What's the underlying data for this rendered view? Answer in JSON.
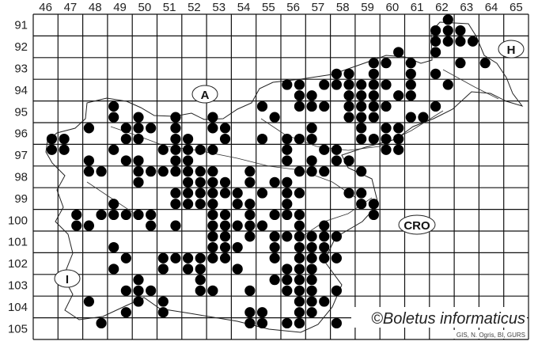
{
  "chart_data": {
    "type": "map",
    "grid": {
      "columns": [
        "46",
        "47",
        "48",
        "49",
        "50",
        "51",
        "52",
        "53",
        "54",
        "55",
        "56",
        "57",
        "58",
        "59",
        "60",
        "61",
        "62",
        "63",
        "64",
        "65"
      ],
      "rows": [
        "91",
        "92",
        "93",
        "94",
        "95",
        "96",
        "97",
        "98",
        "99",
        "100",
        "101",
        "102",
        "103",
        "104",
        "105"
      ]
    },
    "dot_color": "#000000",
    "dots": [
      [
        62,
        91,
        1,
        0
      ],
      [
        62,
        91,
        0,
        1
      ],
      [
        62,
        91,
        1,
        1
      ],
      [
        63,
        91,
        0,
        1
      ],
      [
        62,
        92,
        0,
        0
      ],
      [
        62,
        92,
        1,
        0
      ],
      [
        63,
        92,
        0,
        0
      ],
      [
        63,
        92,
        1,
        0
      ],
      [
        62,
        92,
        0,
        1
      ],
      [
        60,
        92,
        1,
        1
      ],
      [
        59,
        93,
        1,
        0
      ],
      [
        60,
        93,
        0,
        0
      ],
      [
        61,
        93,
        0,
        0
      ],
      [
        63,
        93,
        0,
        0
      ],
      [
        64,
        93,
        0,
        0
      ],
      [
        58,
        93,
        0,
        1
      ],
      [
        58,
        93,
        1,
        1
      ],
      [
        59,
        93,
        1,
        1
      ],
      [
        61,
        93,
        0,
        1
      ],
      [
        62,
        93,
        0,
        1
      ],
      [
        56,
        94,
        0,
        0
      ],
      [
        56,
        94,
        1,
        0
      ],
      [
        57,
        94,
        1,
        0
      ],
      [
        58,
        94,
        0,
        0
      ],
      [
        58,
        94,
        1,
        0
      ],
      [
        59,
        94,
        0,
        0
      ],
      [
        59,
        94,
        1,
        0
      ],
      [
        60,
        94,
        0,
        0
      ],
      [
        61,
        94,
        0,
        0
      ],
      [
        62,
        94,
        1,
        0
      ],
      [
        56,
        94,
        1,
        1
      ],
      [
        57,
        94,
        0,
        1
      ],
      [
        58,
        94,
        1,
        1
      ],
      [
        59,
        94,
        0,
        1
      ],
      [
        59,
        94,
        1,
        1
      ],
      [
        60,
        94,
        1,
        1
      ],
      [
        61,
        94,
        0,
        1
      ],
      [
        49,
        95,
        0,
        0
      ],
      [
        55,
        95,
        0,
        0
      ],
      [
        56,
        95,
        1,
        0
      ],
      [
        57,
        95,
        0,
        0
      ],
      [
        57,
        95,
        1,
        0
      ],
      [
        58,
        95,
        1,
        0
      ],
      [
        59,
        95,
        0,
        0
      ],
      [
        59,
        95,
        1,
        0
      ],
      [
        60,
        95,
        0,
        0
      ],
      [
        62,
        95,
        0,
        0
      ],
      [
        49,
        95,
        0,
        1
      ],
      [
        50,
        95,
        0,
        1
      ],
      [
        51,
        95,
        1,
        1
      ],
      [
        53,
        95,
        0,
        1
      ],
      [
        55,
        95,
        1,
        1
      ],
      [
        58,
        95,
        1,
        1
      ],
      [
        59,
        95,
        0,
        1
      ],
      [
        59,
        95,
        1,
        1
      ],
      [
        61,
        95,
        0,
        1
      ],
      [
        61,
        95,
        1,
        1
      ],
      [
        48,
        96,
        0,
        0
      ],
      [
        49,
        96,
        1,
        0
      ],
      [
        50,
        96,
        0,
        0
      ],
      [
        50,
        96,
        1,
        0
      ],
      [
        51,
        96,
        1,
        0
      ],
      [
        53,
        96,
        0,
        0
      ],
      [
        53,
        96,
        1,
        0
      ],
      [
        57,
        96,
        0,
        0
      ],
      [
        59,
        96,
        0,
        0
      ],
      [
        60,
        96,
        0,
        0
      ],
      [
        60,
        96,
        1,
        0
      ],
      [
        46,
        96,
        1,
        1
      ],
      [
        47,
        96,
        0,
        1
      ],
      [
        49,
        96,
        1,
        1
      ],
      [
        50,
        96,
        0,
        1
      ],
      [
        51,
        96,
        1,
        1
      ],
      [
        52,
        96,
        0,
        1
      ],
      [
        53,
        96,
        1,
        1
      ],
      [
        55,
        96,
        0,
        1
      ],
      [
        56,
        96,
        0,
        1
      ],
      [
        56,
        96,
        1,
        1
      ],
      [
        57,
        96,
        0,
        1
      ],
      [
        59,
        96,
        0,
        1
      ],
      [
        59,
        96,
        1,
        1
      ],
      [
        60,
        96,
        0,
        1
      ],
      [
        60,
        96,
        1,
        1
      ],
      [
        46,
        97,
        1,
        0
      ],
      [
        47,
        97,
        0,
        0
      ],
      [
        49,
        97,
        0,
        0
      ],
      [
        51,
        97,
        0,
        0
      ],
      [
        51,
        97,
        1,
        0
      ],
      [
        52,
        97,
        0,
        0
      ],
      [
        52,
        97,
        1,
        0
      ],
      [
        53,
        97,
        0,
        0
      ],
      [
        56,
        97,
        0,
        0
      ],
      [
        57,
        97,
        1,
        0
      ],
      [
        58,
        97,
        0,
        0
      ],
      [
        60,
        97,
        0,
        0
      ],
      [
        60,
        97,
        1,
        0
      ],
      [
        48,
        97,
        0,
        1
      ],
      [
        49,
        97,
        1,
        1
      ],
      [
        50,
        97,
        0,
        1
      ],
      [
        51,
        97,
        1,
        1
      ],
      [
        52,
        97,
        0,
        1
      ],
      [
        56,
        97,
        0,
        1
      ],
      [
        57,
        97,
        0,
        1
      ],
      [
        58,
        97,
        0,
        1
      ],
      [
        58,
        97,
        1,
        1
      ],
      [
        48,
        98,
        0,
        0
      ],
      [
        48,
        98,
        1,
        0
      ],
      [
        50,
        98,
        0,
        0
      ],
      [
        50,
        98,
        1,
        0
      ],
      [
        51,
        98,
        0,
        0
      ],
      [
        51,
        98,
        1,
        0
      ],
      [
        52,
        98,
        0,
        0
      ],
      [
        52,
        98,
        1,
        0
      ],
      [
        53,
        98,
        0,
        0
      ],
      [
        54,
        98,
        1,
        0
      ],
      [
        56,
        98,
        1,
        0
      ],
      [
        57,
        98,
        0,
        0
      ],
      [
        57,
        98,
        1,
        0
      ],
      [
        59,
        98,
        0,
        0
      ],
      [
        50,
        98,
        0,
        1
      ],
      [
        52,
        98,
        0,
        1
      ],
      [
        52,
        98,
        1,
        1
      ],
      [
        53,
        98,
        0,
        1
      ],
      [
        53,
        98,
        1,
        1
      ],
      [
        54,
        98,
        1,
        1
      ],
      [
        55,
        98,
        1,
        1
      ],
      [
        56,
        98,
        0,
        1
      ],
      [
        51,
        99,
        1,
        0
      ],
      [
        52,
        99,
        0,
        0
      ],
      [
        52,
        99,
        1,
        0
      ],
      [
        53,
        99,
        0,
        0
      ],
      [
        53,
        99,
        1,
        0
      ],
      [
        54,
        99,
        0,
        0
      ],
      [
        55,
        99,
        0,
        0
      ],
      [
        56,
        99,
        0,
        0
      ],
      [
        56,
        99,
        1,
        0
      ],
      [
        58,
        99,
        1,
        0
      ],
      [
        59,
        99,
        0,
        0
      ],
      [
        49,
        99,
        0,
        1
      ],
      [
        51,
        99,
        1,
        1
      ],
      [
        52,
        99,
        0,
        1
      ],
      [
        52,
        99,
        1,
        1
      ],
      [
        53,
        99,
        0,
        1
      ],
      [
        54,
        99,
        0,
        1
      ],
      [
        54,
        99,
        1,
        1
      ],
      [
        56,
        99,
        0,
        1
      ],
      [
        59,
        99,
        0,
        1
      ],
      [
        59,
        99,
        1,
        1
      ],
      [
        47,
        100,
        1,
        0
      ],
      [
        48,
        100,
        1,
        0
      ],
      [
        49,
        100,
        0,
        0
      ],
      [
        49,
        100,
        1,
        0
      ],
      [
        50,
        100,
        0,
        0
      ],
      [
        50,
        100,
        1,
        0
      ],
      [
        53,
        100,
        0,
        0
      ],
      [
        53,
        100,
        1,
        0
      ],
      [
        54,
        100,
        1,
        0
      ],
      [
        55,
        100,
        1,
        0
      ],
      [
        56,
        100,
        0,
        0
      ],
      [
        56,
        100,
        1,
        0
      ],
      [
        59,
        100,
        1,
        0
      ],
      [
        47,
        100,
        1,
        1
      ],
      [
        48,
        100,
        0,
        1
      ],
      [
        50,
        100,
        1,
        1
      ],
      [
        51,
        100,
        1,
        1
      ],
      [
        53,
        100,
        0,
        1
      ],
      [
        53,
        100,
        1,
        1
      ],
      [
        54,
        100,
        0,
        1
      ],
      [
        54,
        100,
        1,
        1
      ],
      [
        55,
        100,
        0,
        1
      ],
      [
        56,
        100,
        1,
        1
      ],
      [
        57,
        100,
        1,
        1
      ],
      [
        53,
        101,
        0,
        0
      ],
      [
        53,
        101,
        1,
        0
      ],
      [
        54,
        101,
        1,
        0
      ],
      [
        55,
        101,
        1,
        0
      ],
      [
        56,
        101,
        0,
        0
      ],
      [
        56,
        101,
        1,
        0
      ],
      [
        57,
        101,
        0,
        0
      ],
      [
        57,
        101,
        1,
        0
      ],
      [
        58,
        101,
        0,
        0
      ],
      [
        49,
        101,
        0,
        1
      ],
      [
        53,
        101,
        0,
        1
      ],
      [
        53,
        101,
        1,
        1
      ],
      [
        54,
        101,
        0,
        1
      ],
      [
        55,
        101,
        1,
        1
      ],
      [
        56,
        101,
        1,
        1
      ],
      [
        57,
        101,
        0,
        1
      ],
      [
        57,
        101,
        1,
        1
      ],
      [
        49,
        102,
        1,
        0
      ],
      [
        51,
        102,
        0,
        0
      ],
      [
        51,
        102,
        1,
        0
      ],
      [
        52,
        102,
        0,
        0
      ],
      [
        52,
        102,
        1,
        0
      ],
      [
        53,
        102,
        0,
        0
      ],
      [
        53,
        102,
        1,
        0
      ],
      [
        55,
        102,
        1,
        0
      ],
      [
        56,
        102,
        1,
        0
      ],
      [
        57,
        102,
        0,
        0
      ],
      [
        57,
        102,
        1,
        0
      ],
      [
        58,
        102,
        0,
        0
      ],
      [
        49,
        102,
        0,
        1
      ],
      [
        51,
        102,
        0,
        1
      ],
      [
        52,
        102,
        0,
        1
      ],
      [
        52,
        102,
        1,
        1
      ],
      [
        54,
        102,
        0,
        1
      ],
      [
        56,
        102,
        0,
        1
      ],
      [
        56,
        102,
        1,
        1
      ],
      [
        57,
        102,
        0,
        1
      ],
      [
        50,
        103,
        0,
        0
      ],
      [
        52,
        103,
        1,
        0
      ],
      [
        55,
        103,
        1,
        0
      ],
      [
        56,
        103,
        0,
        0
      ],
      [
        56,
        103,
        1,
        0
      ],
      [
        57,
        103,
        0,
        0
      ],
      [
        49,
        103,
        1,
        1
      ],
      [
        50,
        103,
        0,
        1
      ],
      [
        50,
        103,
        1,
        1
      ],
      [
        52,
        103,
        1,
        1
      ],
      [
        53,
        103,
        0,
        1
      ],
      [
        54,
        103,
        1,
        1
      ],
      [
        56,
        103,
        0,
        1
      ],
      [
        56,
        103,
        1,
        1
      ],
      [
        57,
        103,
        0,
        1
      ],
      [
        58,
        103,
        0,
        1
      ],
      [
        48,
        104,
        0,
        0
      ],
      [
        50,
        104,
        0,
        0
      ],
      [
        51,
        104,
        0,
        0
      ],
      [
        56,
        104,
        1,
        0
      ],
      [
        57,
        104,
        0,
        0
      ],
      [
        57,
        104,
        1,
        0
      ],
      [
        49,
        104,
        1,
        1
      ],
      [
        51,
        104,
        0,
        1
      ],
      [
        54,
        104,
        1,
        1
      ],
      [
        55,
        104,
        0,
        1
      ],
      [
        56,
        104,
        1,
        1
      ],
      [
        57,
        104,
        0,
        1
      ],
      [
        48,
        105,
        1,
        0
      ],
      [
        54,
        105,
        1,
        0
      ],
      [
        55,
        105,
        0,
        0
      ],
      [
        56,
        105,
        0,
        0
      ],
      [
        56,
        105,
        1,
        0
      ],
      [
        58,
        105,
        0,
        0
      ]
    ],
    "country_labels": {
      "austria": "A",
      "hungary": "H",
      "croatia": "CRO",
      "italy": "I"
    }
  },
  "credits": {
    "copyright": "©Boletus informaticus",
    "source": "GIS, N. Ogris, BI, GURS"
  }
}
